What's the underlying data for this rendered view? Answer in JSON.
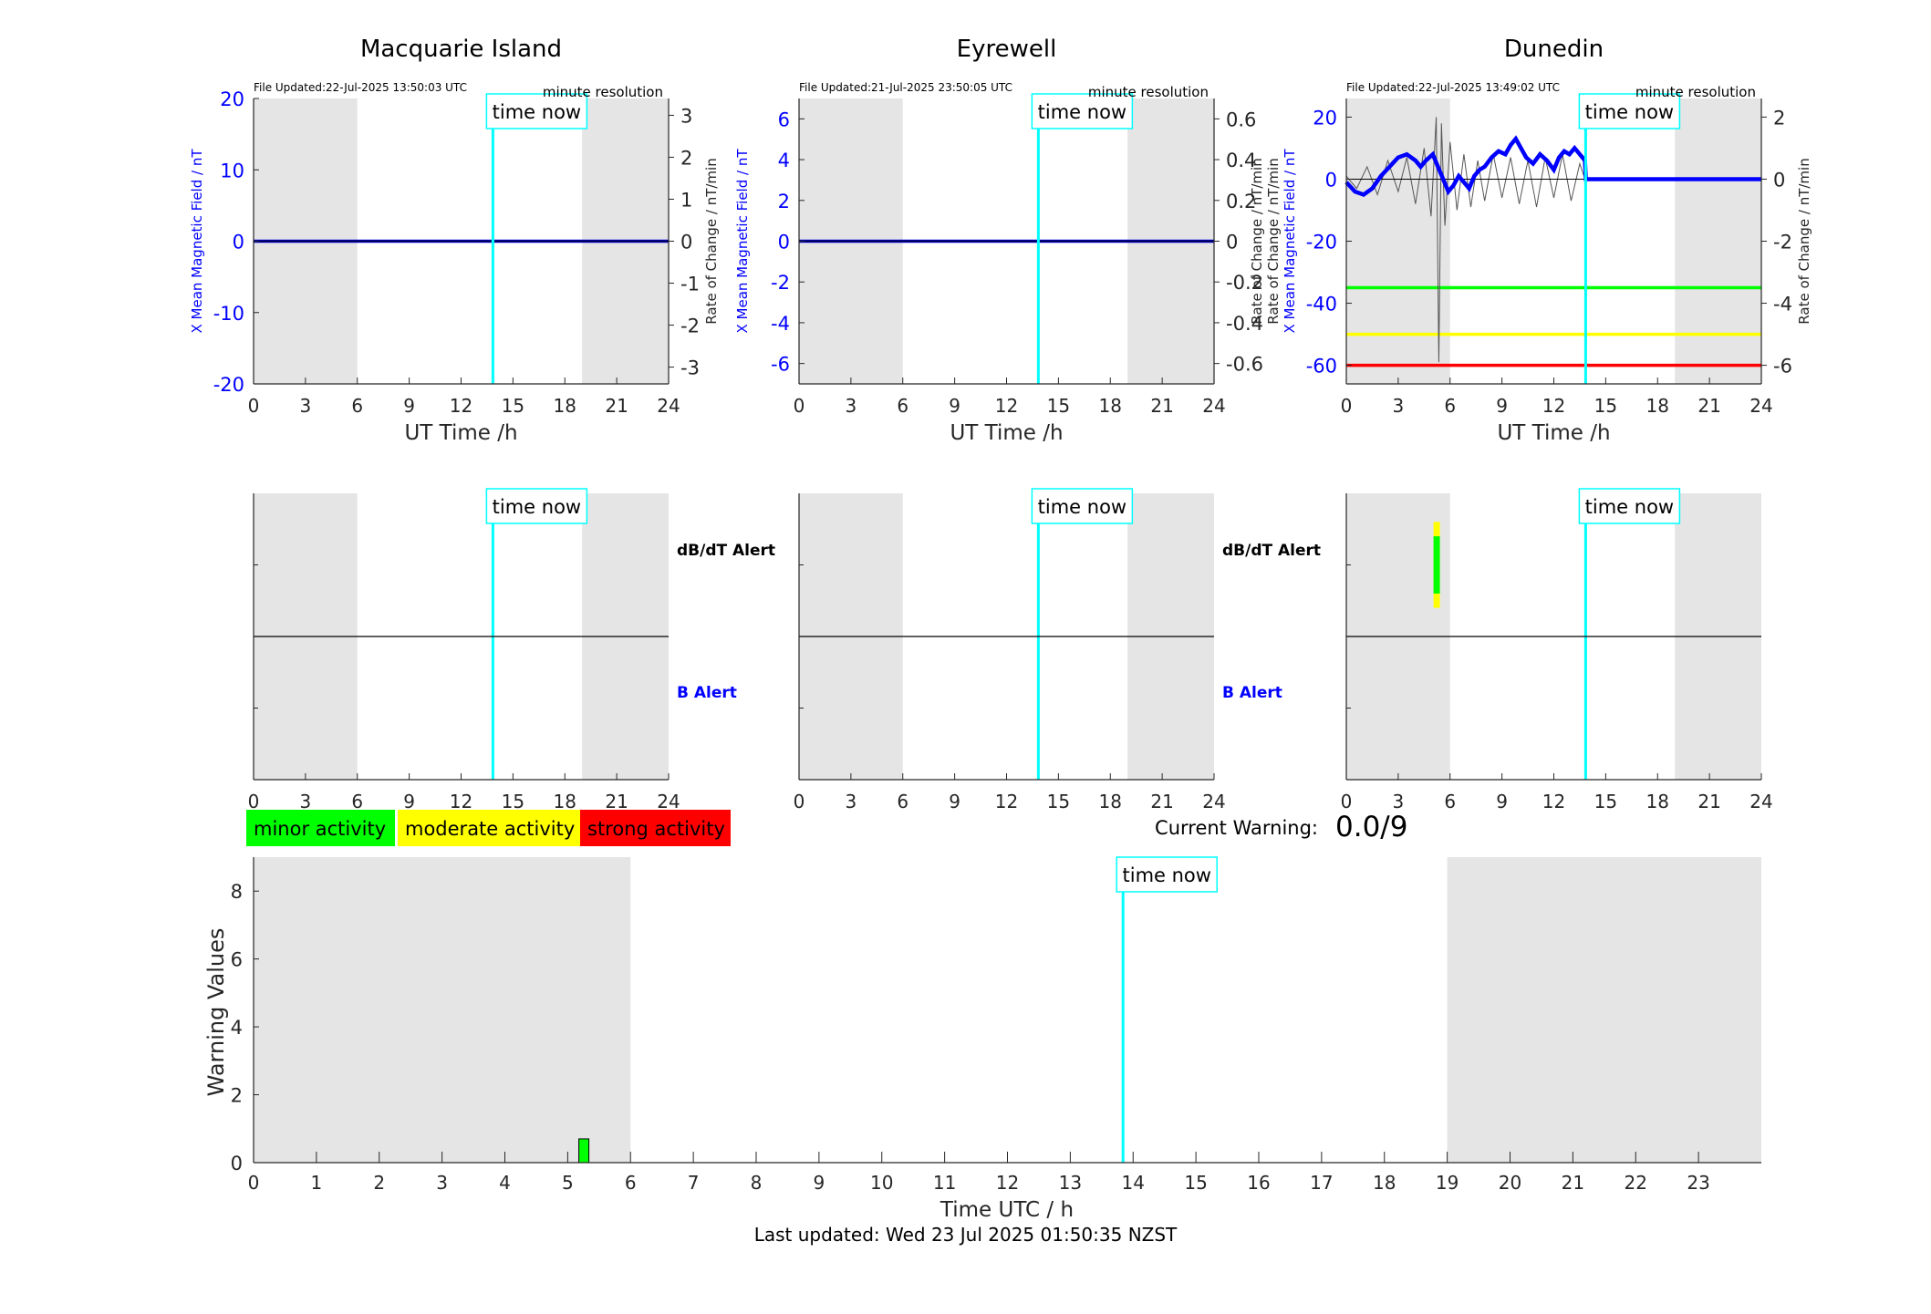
{
  "footer": "Last updated: Wed 23 Jul 2025 01:50:35 NZST",
  "time_now_label": "time now",
  "time_now_h": 13.84,
  "night_shading": [
    [
      0,
      6
    ],
    [
      19,
      24
    ]
  ],
  "colors": {
    "field": "#0000ff",
    "rate": "#000000",
    "time_now": "#00ffff",
    "shade": "#e5e5e5",
    "minor": "#00ff00",
    "moderate": "#ffff00",
    "strong": "#ff0000"
  },
  "stations": [
    {
      "name": "Macquarie Island",
      "file_updated": "File Updated:22-Jul-2025 13:50:03 UTC",
      "resolution": "minute resolution",
      "y_left": {
        "label": "X Mean Magnetic Field / nT",
        "range": [
          -20,
          20
        ],
        "ticks": [
          "-20",
          "-10",
          "0",
          "10",
          "20"
        ]
      },
      "y_right": {
        "label": "Rate of Change / nT/min",
        "range": [
          -3.4,
          3.4
        ],
        "ticks": [
          "-3",
          "-2",
          "-1",
          "0",
          "1",
          "2",
          "3"
        ]
      },
      "field_series": [
        [
          0,
          0
        ],
        [
          24,
          0
        ]
      ],
      "rate_series": [],
      "threshold_lines": [],
      "show_alert_labels": true,
      "alert_marks": []
    },
    {
      "name": "Eyrewell",
      "file_updated": "File Updated:21-Jul-2025 23:50:05 UTC",
      "resolution": "minute resolution",
      "y_left": {
        "label": "X Mean Magnetic Field / nT",
        "range": [
          -7,
          7
        ],
        "ticks": [
          "-6",
          "-4",
          "-2",
          "0",
          "2",
          "4",
          "6"
        ]
      },
      "y_right": {
        "label": "Rate of Change / nT/min",
        "range": [
          -0.7,
          0.7
        ],
        "ticks": [
          "-0.6",
          "-0.4",
          "-0.2",
          "0",
          "0.2",
          "0.4",
          "0.6"
        ]
      },
      "field_series": [
        [
          0,
          0
        ],
        [
          24,
          0
        ]
      ],
      "rate_series": [],
      "threshold_lines": [],
      "show_alert_labels": true,
      "alert_marks": []
    },
    {
      "name": "Dunedin",
      "file_updated": "File Updated:22-Jul-2025 13:49:02 UTC",
      "resolution": "minute resolution",
      "y_left": {
        "label": "X Mean Magnetic Field / nT",
        "range": [
          -66,
          26
        ],
        "ticks": [
          "-60",
          "-40",
          "-20",
          "0",
          "20"
        ]
      },
      "y_right": {
        "label": "Rate of Change / nT/min",
        "range": [
          -6.6,
          2.6
        ],
        "ticks": [
          "-6",
          "-4",
          "-2",
          "0",
          "2"
        ]
      },
      "y_left_label_2": "Rate of Change / nT/min",
      "field_series": [
        [
          0,
          -1
        ],
        [
          0.5,
          -4
        ],
        [
          1,
          -5
        ],
        [
          1.5,
          -3
        ],
        [
          2,
          1
        ],
        [
          2.5,
          4
        ],
        [
          3,
          7
        ],
        [
          3.5,
          8
        ],
        [
          4,
          6
        ],
        [
          4.3,
          4
        ],
        [
          4.6,
          6
        ],
        [
          5,
          8
        ],
        [
          5.3,
          4
        ],
        [
          5.6,
          0
        ],
        [
          5.9,
          -4
        ],
        [
          6.2,
          -2
        ],
        [
          6.5,
          1
        ],
        [
          6.8,
          -1
        ],
        [
          7.1,
          -3
        ],
        [
          7.4,
          1
        ],
        [
          7.7,
          3
        ],
        [
          8,
          4
        ],
        [
          8.4,
          7
        ],
        [
          8.8,
          9
        ],
        [
          9.2,
          8
        ],
        [
          9.5,
          11
        ],
        [
          9.8,
          13
        ],
        [
          10.1,
          10
        ],
        [
          10.4,
          7
        ],
        [
          10.8,
          5
        ],
        [
          11.2,
          8
        ],
        [
          11.6,
          6
        ],
        [
          12,
          3
        ],
        [
          12.3,
          7
        ],
        [
          12.6,
          9
        ],
        [
          12.9,
          8
        ],
        [
          13.2,
          10
        ],
        [
          13.5,
          8
        ],
        [
          13.8,
          6
        ],
        [
          13.85,
          0
        ],
        [
          24,
          0
        ]
      ],
      "rate_series": [
        [
          0,
          0.1
        ],
        [
          0.6,
          -0.3
        ],
        [
          1.2,
          0.4
        ],
        [
          1.8,
          -0.5
        ],
        [
          2.4,
          0.6
        ],
        [
          3,
          -0.4
        ],
        [
          3.5,
          0.7
        ],
        [
          4,
          -0.8
        ],
        [
          4.5,
          1.0
        ],
        [
          4.9,
          -1.2
        ],
        [
          5.2,
          2.0
        ],
        [
          5.35,
          -5.9
        ],
        [
          5.5,
          1.8
        ],
        [
          5.7,
          -1.5
        ],
        [
          6,
          1.2
        ],
        [
          6.4,
          -1.0
        ],
        [
          6.8,
          0.8
        ],
        [
          7.2,
          -0.9
        ],
        [
          7.6,
          0.6
        ],
        [
          8,
          -0.7
        ],
        [
          8.5,
          0.8
        ],
        [
          9,
          -0.6
        ],
        [
          9.5,
          0.7
        ],
        [
          10,
          -0.8
        ],
        [
          10.5,
          0.6
        ],
        [
          11,
          -0.9
        ],
        [
          11.5,
          0.7
        ],
        [
          12,
          -0.6
        ],
        [
          12.5,
          0.8
        ],
        [
          13,
          -0.7
        ],
        [
          13.5,
          0.5
        ],
        [
          13.8,
          0
        ]
      ],
      "threshold_lines": [
        {
          "value": -35,
          "color": "#00ff00"
        },
        {
          "value": -50,
          "color": "#ffff00"
        },
        {
          "value": -60,
          "color": "#ff0000"
        }
      ],
      "show_alert_labels": true,
      "alert_marks": [
        {
          "h": 5.2,
          "row": "dbdt",
          "color": "#ffff00",
          "from": 0.2,
          "to": 0.8
        },
        {
          "h": 5.2,
          "row": "dbdt",
          "color": "#00ff00",
          "from": 0.3,
          "to": 0.7
        }
      ]
    }
  ],
  "x_axis": {
    "label": "UT Time /h",
    "ticks": [
      "0",
      "3",
      "6",
      "9",
      "12",
      "15",
      "18",
      "21",
      "24"
    ]
  },
  "alert_panel": {
    "dbdt_label": "dB/dT Alert",
    "b_label": "B Alert"
  },
  "legend": [
    {
      "label": "minor activity",
      "color": "#00ff00"
    },
    {
      "label": "moderate activity",
      "color": "#ffff00"
    },
    {
      "label": "strong activity",
      "color": "#ff0000"
    }
  ],
  "current_warning": {
    "label": "Current Warning:",
    "value": "0.0/9"
  },
  "chart_data": {
    "type": "bar",
    "xlabel": "Time UTC / h",
    "ylabel": "Warning Values",
    "ylim": [
      0,
      9
    ],
    "xlim": [
      0,
      24
    ],
    "y_ticks": [
      "0",
      "2",
      "4",
      "6",
      "8"
    ],
    "x_ticks": [
      "0",
      "1",
      "2",
      "3",
      "4",
      "5",
      "6",
      "7",
      "8",
      "9",
      "10",
      "11",
      "12",
      "13",
      "14",
      "15",
      "16",
      "17",
      "18",
      "19",
      "20",
      "21",
      "22",
      "23"
    ],
    "bars": [
      {
        "h": 5.25,
        "value": 0.7,
        "color": "#00ff00"
      }
    ]
  }
}
